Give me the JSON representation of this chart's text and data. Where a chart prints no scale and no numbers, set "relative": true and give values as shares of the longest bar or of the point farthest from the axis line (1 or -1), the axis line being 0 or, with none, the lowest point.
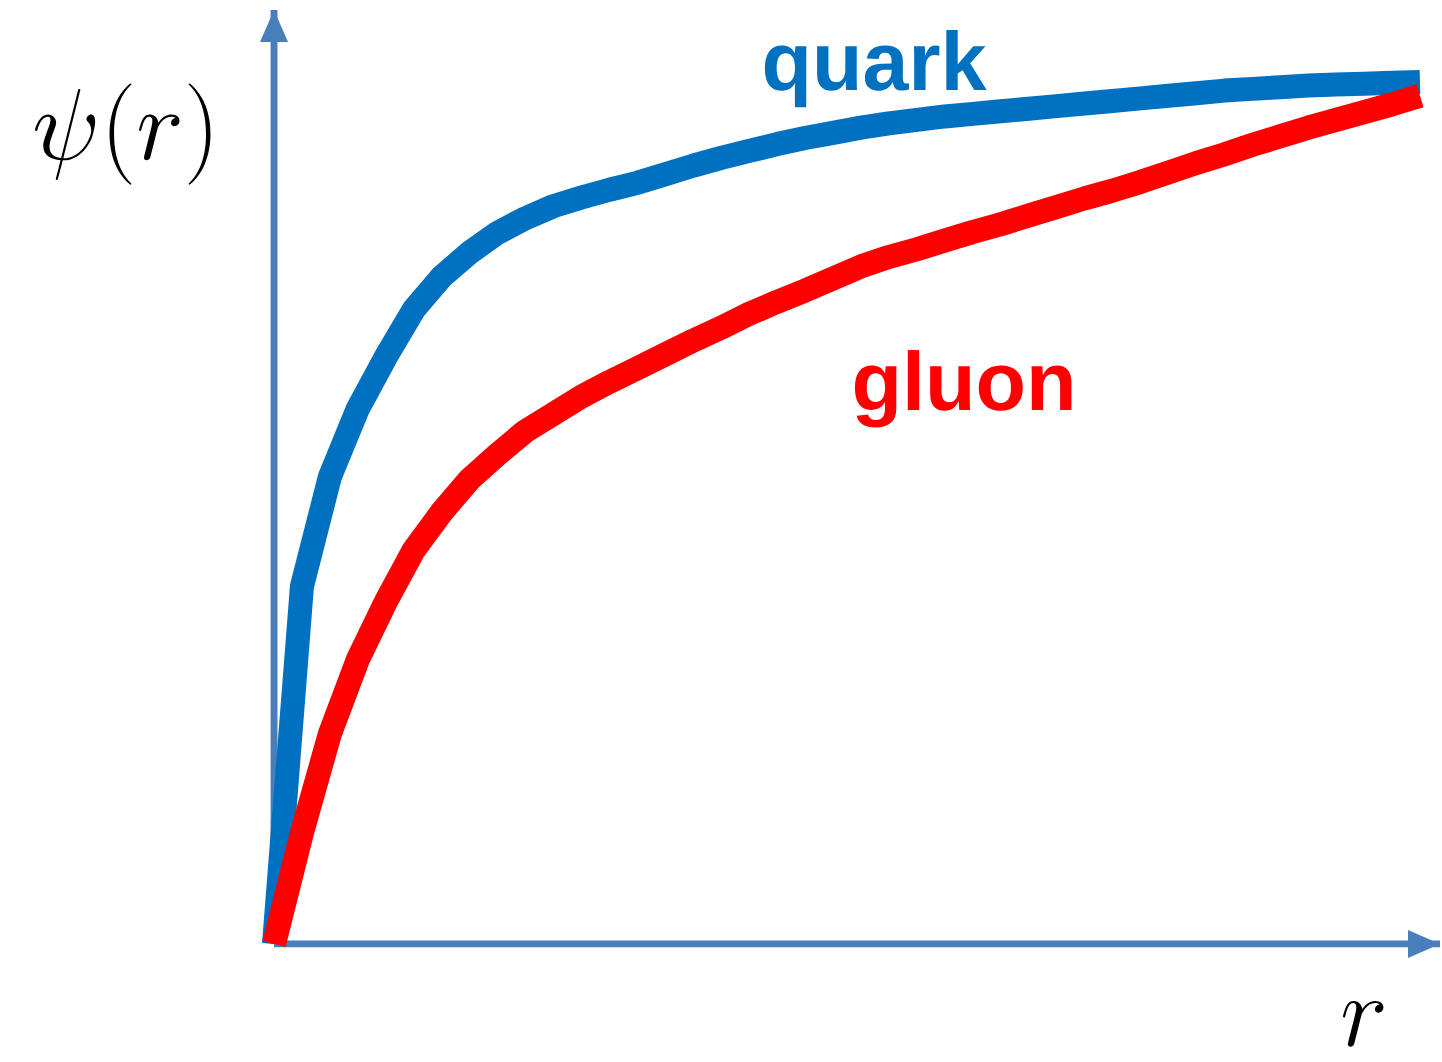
{
  "chart_data": {
    "type": "line",
    "relative": true,
    "ylabel": "\\psi(r)",
    "xlabel": "r",
    "categories": [
      null,
      null,
      null,
      null,
      null,
      null,
      null,
      null,
      null,
      null,
      null,
      null,
      null,
      null,
      null,
      null,
      null,
      null,
      null,
      null,
      null,
      null,
      null,
      null,
      null,
      null,
      null,
      null,
      null,
      null,
      null,
      null,
      null,
      null,
      null,
      null,
      null,
      null,
      null,
      null,
      null,
      null
    ],
    "series": [
      {
        "name": "quark",
        "color": "#0070c0",
        "values": [
          0,
          0.415,
          0.542,
          0.621,
          0.681,
          0.736,
          0.774,
          0.802,
          0.825,
          0.842,
          0.856,
          0.866,
          0.875,
          0.883,
          0.893,
          0.903,
          0.912,
          0.92,
          0.928,
          0.935,
          0.941,
          0.947,
          0.952,
          0.956,
          0.96,
          0.963,
          0.966,
          0.969,
          0.972,
          0.975,
          0.978,
          0.981,
          0.984,
          0.987,
          0.99,
          0.992,
          0.994,
          0.996,
          0.997,
          0.998,
          0.999,
          1.0
        ]
      },
      {
        "name": "gluon",
        "color": "#ff0000",
        "values": [
          0,
          0.129,
          0.244,
          0.33,
          0.397,
          0.457,
          0.501,
          0.539,
          0.568,
          0.595,
          0.615,
          0.635,
          0.652,
          0.668,
          0.684,
          0.7,
          0.715,
          0.731,
          0.745,
          0.758,
          0.772,
          0.786,
          0.797,
          0.806,
          0.816,
          0.826,
          0.835,
          0.845,
          0.855,
          0.865,
          0.874,
          0.884,
          0.895,
          0.906,
          0.916,
          0.927,
          0.937,
          0.947,
          0.956,
          0.965,
          0.974,
          0.984
        ]
      }
    ]
  }
}
